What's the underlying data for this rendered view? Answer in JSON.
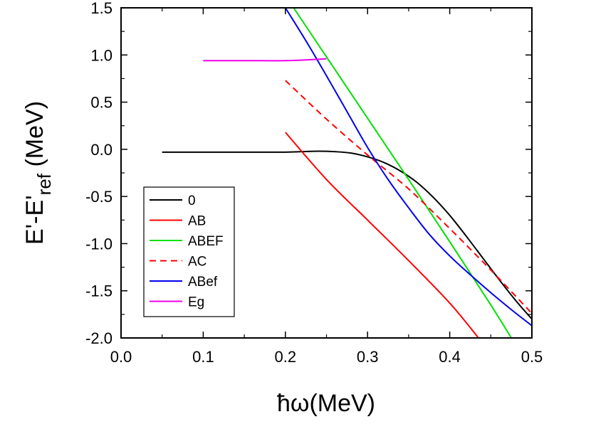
{
  "chart_data": {
    "type": "line",
    "title": "",
    "xlabel": "ħω(MeV)",
    "ylabel": {
      "main": "E'-E'",
      "sub": "ref",
      "unit": " (MeV)"
    },
    "xlim": [
      0.0,
      0.5
    ],
    "ylim": [
      -2.0,
      1.5
    ],
    "xticks": [
      {
        "value": 0.0,
        "label": "0.0"
      },
      {
        "value": 0.1,
        "label": "0.1"
      },
      {
        "value": 0.2,
        "label": "0.2"
      },
      {
        "value": 0.3,
        "label": "0.3"
      },
      {
        "value": 0.4,
        "label": "0.4"
      },
      {
        "value": 0.5,
        "label": "0.5"
      }
    ],
    "yticks": [
      {
        "value": 1.5,
        "label": "1.5"
      },
      {
        "value": 1.0,
        "label": "1.0"
      },
      {
        "value": 0.5,
        "label": "0.5"
      },
      {
        "value": 0.0,
        "label": "0.0"
      },
      {
        "value": -0.5,
        "label": "-0.5"
      },
      {
        "value": -1.0,
        "label": "-1.0"
      },
      {
        "value": -1.5,
        "label": "-1.5"
      },
      {
        "value": -2.0,
        "label": "-2.0"
      }
    ],
    "grid": false,
    "legend_position": "lower-left",
    "series": [
      {
        "name": "0",
        "color": "#000000",
        "dash": "solid",
        "x": [
          0.05,
          0.1,
          0.15,
          0.2,
          0.22,
          0.24,
          0.26,
          0.28,
          0.3,
          0.32,
          0.34,
          0.36,
          0.38,
          0.4,
          0.42,
          0.44,
          0.46,
          0.48,
          0.5
        ],
        "y": [
          -0.03,
          -0.03,
          -0.03,
          -0.03,
          -0.025,
          -0.02,
          -0.025,
          -0.04,
          -0.08,
          -0.14,
          -0.23,
          -0.35,
          -0.51,
          -0.7,
          -0.92,
          -1.15,
          -1.38,
          -1.6,
          -1.8
        ]
      },
      {
        "name": "AB",
        "color": "#ff0000",
        "dash": "solid",
        "x": [
          0.2,
          0.25,
          0.3,
          0.35,
          0.4,
          0.435
        ],
        "y": [
          0.18,
          -0.32,
          -0.75,
          -1.18,
          -1.63,
          -2.0
        ]
      },
      {
        "name": "ABEF",
        "color": "#00e000",
        "dash": "solid",
        "x": [
          0.21,
          0.25,
          0.3,
          0.35,
          0.4,
          0.45,
          0.475
        ],
        "y": [
          1.5,
          0.98,
          0.33,
          -0.32,
          -0.98,
          -1.65,
          -2.0
        ]
      },
      {
        "name": "AC",
        "color": "#ff0000",
        "dash": "dashed",
        "x": [
          0.2,
          0.25,
          0.3,
          0.35,
          0.4,
          0.45,
          0.5
        ],
        "y": [
          0.73,
          0.32,
          -0.06,
          -0.42,
          -0.84,
          -1.28,
          -1.74
        ]
      },
      {
        "name": "ABef",
        "color": "#0000ee",
        "dash": "solid",
        "x": [
          0.2,
          0.225,
          0.25,
          0.275,
          0.3,
          0.325,
          0.35,
          0.375,
          0.4,
          0.425,
          0.45,
          0.475,
          0.5
        ],
        "y": [
          1.5,
          1.15,
          0.78,
          0.4,
          0.02,
          -0.32,
          -0.62,
          -0.9,
          -1.13,
          -1.33,
          -1.52,
          -1.7,
          -1.87
        ]
      },
      {
        "name": "Eg",
        "color": "#ee00ee",
        "dash": "solid",
        "x": [
          0.1,
          0.15,
          0.2,
          0.23,
          0.25
        ],
        "y": [
          0.94,
          0.94,
          0.94,
          0.95,
          0.96
        ]
      }
    ]
  }
}
